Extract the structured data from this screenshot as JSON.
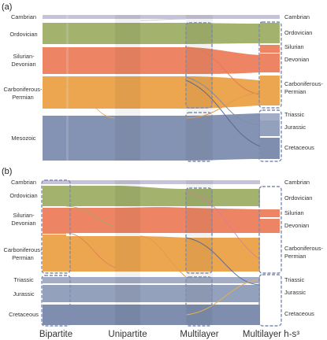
{
  "panels": [
    {
      "panel_label": "(a)",
      "left_labels": [
        "Cambrian",
        "Ordovician",
        "Silurian-",
        "Devonian",
        "Carboniferous-",
        "Permian",
        "Mesozoic"
      ],
      "right_labels": [
        "Cambrian",
        "Ordovician",
        "Silurian",
        "Devonian",
        "Carboniferous-",
        "Permian",
        "Triassic",
        "Jurassic",
        "Cretaceous"
      ]
    },
    {
      "panel_label": "(b)",
      "left_labels": [
        "Cambrian",
        "Ordovician",
        "Silurian-",
        "Devonian",
        "Carboniferous-",
        "Permian",
        "Triassic",
        "Jurassic",
        "Cretaceous"
      ],
      "right_labels": [
        "Cambrian",
        "Ordovician",
        "Silurian",
        "Devonian",
        "Carboniferous-",
        "Permian",
        "Triassic",
        "Jurassic",
        "Cretaceous"
      ]
    }
  ],
  "x_axis_labels": [
    "Bipartite",
    "Unipartite",
    "Multilayer",
    "Multilayer h-s³"
  ],
  "colors": {
    "cambrian": "#c6c2da",
    "ordovician": "#a3b26d",
    "silurian_devonian": "#ed8564",
    "carboniferous_permian": "#eca650",
    "mesozoic": "#8493b3",
    "triassic": "#a3aec6",
    "jurassic": "#94a1bc",
    "cretaceous": "#7f8eae",
    "frame": "#7d8cb0"
  }
}
